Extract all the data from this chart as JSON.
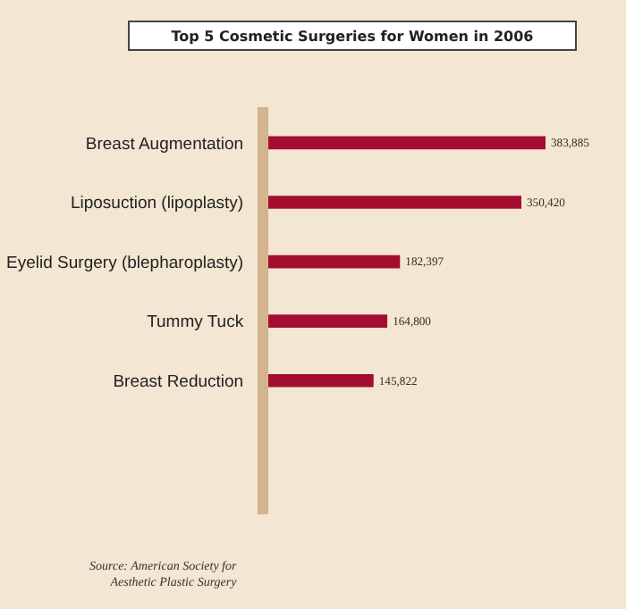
{
  "chart_data": {
    "type": "bar",
    "orientation": "horizontal",
    "title": "Top 5 Cosmetic Surgeries for Women in 2006",
    "categories": [
      "Breast Augmentation",
      "Liposuction (lipoplasty)",
      "Eyelid Surgery (blepharoplasty)",
      "Tummy Tuck",
      "Breast Reduction"
    ],
    "values": [
      383885,
      350420,
      182397,
      164800,
      145822
    ],
    "value_labels": [
      "383,885",
      "350,420",
      "182,397",
      "164,800",
      "145,822"
    ],
    "color": "#a50d30",
    "annotations": [
      "Source: American Society for Aesthetic Plastic Surgery"
    ]
  }
}
